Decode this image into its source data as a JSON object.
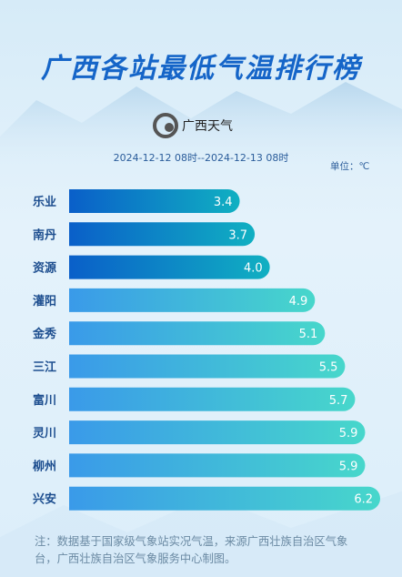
{
  "chart_data": {
    "type": "bar",
    "title": "广西各站最低气温排行榜",
    "brand": "广西天气",
    "subtitle": "2024-12-12 08时--2024-12-13 08时",
    "unit": "单位：℃",
    "categories": [
      "乐业",
      "南丹",
      "资源",
      "灌阳",
      "金秀",
      "三江",
      "富川",
      "灵川",
      "柳州",
      "兴安"
    ],
    "values": [
      3.4,
      3.7,
      4.0,
      4.9,
      5.1,
      5.5,
      5.7,
      5.9,
      5.9,
      6.2
    ],
    "value_labels": [
      "3.4",
      "3.7",
      "4.0",
      "4.9",
      "5.1",
      "5.5",
      "5.7",
      "5.9",
      "5.9",
      "6.2"
    ],
    "colors": [
      "#0a5fc9",
      "#0a5fc9",
      "#0a5fc9",
      "#3a9ae9",
      "#3a9ae9",
      "#3a9ae9",
      "#3a9ae9",
      "#3a9ae9",
      "#3a9ae9",
      "#3a9ae9"
    ],
    "end_colors": [
      "#10b0c2",
      "#10b0c2",
      "#10b0c2",
      "#47d7cb",
      "#47d7cb",
      "#47d7cb",
      "#47d7cb",
      "#47d7cb",
      "#47d7cb",
      "#47d7cb"
    ],
    "note": "注：数据基于国家级气象站实况气温，来源广西壮族自治区气象台，广西壮族自治区气象服务中心制图。"
  }
}
